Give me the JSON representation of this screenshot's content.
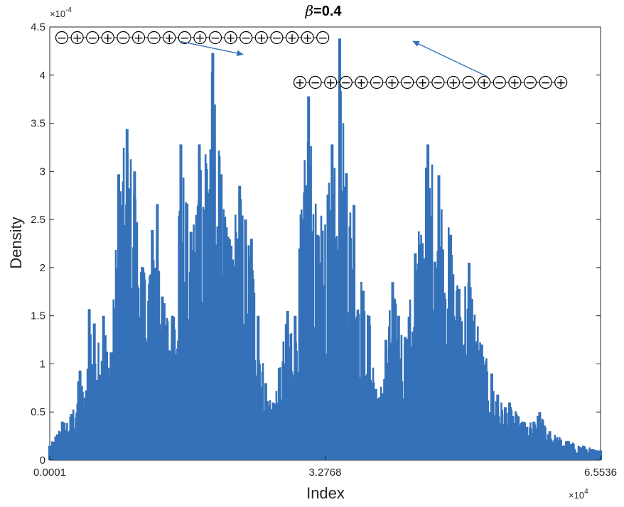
{
  "chart_data": {
    "type": "line",
    "title_prefix": "β",
    "title_rest": "=0.4",
    "xlabel": "Index",
    "ylabel": "Density",
    "xlim": [
      1,
      65536
    ],
    "ylim": [
      0,
      0.00045
    ],
    "x_ticks": [
      {
        "value": 1,
        "label": "0.0001"
      },
      {
        "value": 32768,
        "label": "3.2768"
      },
      {
        "value": 65536,
        "label": "6.5536"
      }
    ],
    "x_exponent": "×10",
    "x_exponent_power": "4",
    "y_ticks": [
      {
        "value": 0,
        "label": "0"
      },
      {
        "value": 5e-05,
        "label": "0.5"
      },
      {
        "value": 0.0001,
        "label": "1"
      },
      {
        "value": 0.00015,
        "label": "1.5"
      },
      {
        "value": 0.0002,
        "label": "2"
      },
      {
        "value": 0.00025,
        "label": "2.5"
      },
      {
        "value": 0.0003,
        "label": "3"
      },
      {
        "value": 0.00035,
        "label": "3.5"
      },
      {
        "value": 0.0004,
        "label": "4"
      },
      {
        "value": 0.00045,
        "label": "4.5"
      }
    ],
    "y_exponent": "×10",
    "y_exponent_power": "-4",
    "grid": false,
    "series_color": "#3471b8",
    "series": [
      {
        "x": [
          1,
          1500,
          2600,
          3600,
          4200,
          4700,
          5300,
          6400,
          7300,
          8200,
          9200,
          10100,
          11200,
          12200,
          12800,
          13400,
          14600,
          15600,
          16800,
          17800,
          19400,
          20400,
          21200,
          22600,
          23300,
          24000,
          24800,
          25700,
          26600,
          28300,
          29200,
          29900,
          30800,
          31900,
          33600,
          34500,
          35300,
          36200,
          37300,
          38000,
          39200,
          40000,
          40800,
          41500,
          42300,
          43500,
          45000,
          46300,
          47700,
          48700,
          49900,
          51400,
          52600,
          53300,
          54200,
          54700,
          56300,
          57600,
          58300,
          59500,
          61700,
          63500,
          65536
        ],
        "y": [
          1.5e-05,
          4e-05,
          4.8e-05,
          9.3e-05,
          6.5e-05,
          0.000157,
          0.000142,
          0.00015,
          0.000112,
          0.000297,
          0.000344,
          0.0003,
          0.000195,
          0.000239,
          0.000266,
          0.00017,
          0.00015,
          0.000328,
          0.000237,
          0.000328,
          0.000423,
          0.000297,
          0.000232,
          0.000285,
          0.00025,
          0.00023,
          0.00015,
          8e-05,
          6e-05,
          0.000155,
          0.00015,
          0.000255,
          0.000378,
          0.000234,
          0.000328,
          0.000438,
          0.000298,
          0.000265,
          0.000176,
          0.00015,
          6.5e-05,
          0.000125,
          0.000185,
          0.00015,
          0.000128,
          0.000215,
          0.000328,
          0.000296,
          0.000234,
          0.000178,
          0.000205,
          0.00012,
          9e-05,
          6.8e-05,
          5.5e-05,
          6e-05,
          4e-05,
          4e-05,
          5e-05,
          3e-05,
          2e-05,
          1.5e-05,
          1e-05
        ]
      }
    ],
    "annotations": [
      {
        "kind": "spin-chain",
        "spins": [
          "−",
          "+",
          "−",
          "+",
          "−",
          "+",
          "−",
          "+",
          "−",
          "+",
          "−",
          "+",
          "−",
          "+",
          "−",
          "+",
          "+",
          "−"
        ],
        "points_to_x": 23400,
        "points_to_y": 0.000423
      },
      {
        "kind": "spin-chain",
        "spins": [
          "+",
          "−",
          "+",
          "−",
          "+",
          "−",
          "+",
          "−",
          "+",
          "−",
          "+",
          "−",
          "+",
          "−",
          "+",
          "−",
          "−",
          "+"
        ],
        "points_to_x": 42400,
        "points_to_y": 0.000438
      }
    ]
  }
}
